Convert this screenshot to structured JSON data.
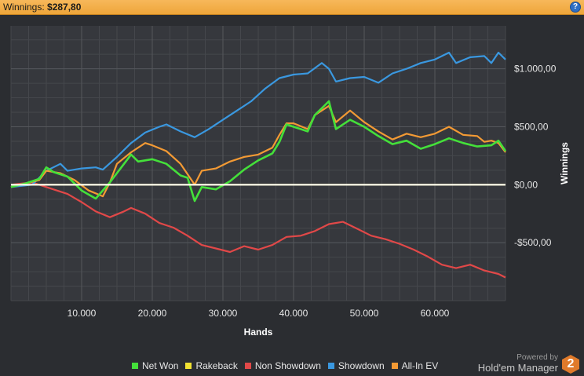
{
  "header": {
    "label": "Winnings:",
    "value": "$287,80",
    "help_glyph": "?"
  },
  "chart_data": {
    "type": "line",
    "xlabel": "Hands",
    "ylabel": "Winnings",
    "xlim": [
      0,
      70000
    ],
    "ylim": [
      -1000,
      1370
    ],
    "x_ticks": [
      10000,
      20000,
      30000,
      40000,
      50000,
      60000
    ],
    "x_tick_labels": [
      "10.000",
      "20.000",
      "30.000",
      "40.000",
      "50.000",
      "60.000"
    ],
    "y_ticks": [
      -500,
      0,
      500,
      1000
    ],
    "y_tick_labels": [
      "-$500,00",
      "$0,00",
      "$500,00",
      "$1.000,00"
    ],
    "grid": true,
    "legend_position": "bottom",
    "series": [
      {
        "name": "Net Won",
        "color": "#44e03a",
        "points": [
          [
            0,
            -20
          ],
          [
            2000,
            10
          ],
          [
            4000,
            50
          ],
          [
            5000,
            150
          ],
          [
            6000,
            110
          ],
          [
            8000,
            70
          ],
          [
            10000,
            -50
          ],
          [
            12000,
            -120
          ],
          [
            14000,
            20
          ],
          [
            16000,
            180
          ],
          [
            17000,
            260
          ],
          [
            18000,
            200
          ],
          [
            20000,
            220
          ],
          [
            22000,
            180
          ],
          [
            24000,
            80
          ],
          [
            25000,
            60
          ],
          [
            26000,
            -140
          ],
          [
            27000,
            -20
          ],
          [
            29000,
            -40
          ],
          [
            31000,
            30
          ],
          [
            33000,
            130
          ],
          [
            35000,
            210
          ],
          [
            37000,
            270
          ],
          [
            38000,
            370
          ],
          [
            39000,
            520
          ],
          [
            40000,
            500
          ],
          [
            42000,
            460
          ],
          [
            43000,
            600
          ],
          [
            45000,
            720
          ],
          [
            46000,
            480
          ],
          [
            48000,
            560
          ],
          [
            50000,
            500
          ],
          [
            52000,
            420
          ],
          [
            54000,
            350
          ],
          [
            56000,
            380
          ],
          [
            58000,
            310
          ],
          [
            60000,
            350
          ],
          [
            62000,
            400
          ],
          [
            64000,
            360
          ],
          [
            66000,
            330
          ],
          [
            68000,
            340
          ],
          [
            69000,
            380
          ],
          [
            70000,
            290
          ]
        ]
      },
      {
        "name": "Rakeback",
        "color": "#f2e232",
        "points": [
          [
            0,
            0
          ],
          [
            70000,
            0
          ]
        ]
      },
      {
        "name": "Non Showdown",
        "color": "#e14848",
        "points": [
          [
            0,
            0
          ],
          [
            3000,
            20
          ],
          [
            5000,
            -20
          ],
          [
            8000,
            -80
          ],
          [
            10000,
            -150
          ],
          [
            12000,
            -230
          ],
          [
            14000,
            -280
          ],
          [
            16000,
            -230
          ],
          [
            17000,
            -200
          ],
          [
            19000,
            -250
          ],
          [
            21000,
            -330
          ],
          [
            23000,
            -370
          ],
          [
            25000,
            -440
          ],
          [
            27000,
            -520
          ],
          [
            29000,
            -550
          ],
          [
            31000,
            -580
          ],
          [
            33000,
            -530
          ],
          [
            35000,
            -560
          ],
          [
            37000,
            -520
          ],
          [
            39000,
            -450
          ],
          [
            41000,
            -440
          ],
          [
            43000,
            -400
          ],
          [
            45000,
            -340
          ],
          [
            47000,
            -320
          ],
          [
            49000,
            -380
          ],
          [
            51000,
            -440
          ],
          [
            53000,
            -470
          ],
          [
            55000,
            -510
          ],
          [
            57000,
            -560
          ],
          [
            59000,
            -620
          ],
          [
            61000,
            -690
          ],
          [
            63000,
            -720
          ],
          [
            65000,
            -690
          ],
          [
            67000,
            -740
          ],
          [
            69000,
            -770
          ],
          [
            70000,
            -800
          ]
        ]
      },
      {
        "name": "Showdown",
        "color": "#3a98e0",
        "points": [
          [
            0,
            -20
          ],
          [
            3000,
            0
          ],
          [
            5000,
            120
          ],
          [
            7000,
            180
          ],
          [
            8000,
            120
          ],
          [
            10000,
            140
          ],
          [
            12000,
            150
          ],
          [
            13000,
            130
          ],
          [
            15000,
            240
          ],
          [
            17000,
            360
          ],
          [
            19000,
            450
          ],
          [
            21000,
            500
          ],
          [
            22000,
            520
          ],
          [
            24000,
            460
          ],
          [
            26000,
            410
          ],
          [
            28000,
            480
          ],
          [
            30000,
            560
          ],
          [
            32000,
            640
          ],
          [
            34000,
            720
          ],
          [
            36000,
            830
          ],
          [
            38000,
            920
          ],
          [
            40000,
            950
          ],
          [
            42000,
            960
          ],
          [
            44000,
            1050
          ],
          [
            45000,
            1000
          ],
          [
            46000,
            890
          ],
          [
            48000,
            920
          ],
          [
            50000,
            930
          ],
          [
            52000,
            880
          ],
          [
            54000,
            960
          ],
          [
            56000,
            1000
          ],
          [
            58000,
            1050
          ],
          [
            60000,
            1080
          ],
          [
            62000,
            1140
          ],
          [
            63000,
            1050
          ],
          [
            65000,
            1100
          ],
          [
            67000,
            1110
          ],
          [
            68000,
            1050
          ],
          [
            69000,
            1140
          ],
          [
            70000,
            1080
          ]
        ]
      },
      {
        "name": "All-In EV",
        "color": "#f39a34",
        "points": [
          [
            0,
            -20
          ],
          [
            2000,
            10
          ],
          [
            4000,
            40
          ],
          [
            5000,
            120
          ],
          [
            7000,
            100
          ],
          [
            9000,
            40
          ],
          [
            11000,
            -50
          ],
          [
            13000,
            -100
          ],
          [
            14000,
            20
          ],
          [
            15000,
            180
          ],
          [
            17000,
            280
          ],
          [
            19000,
            360
          ],
          [
            20000,
            340
          ],
          [
            22000,
            290
          ],
          [
            24000,
            180
          ],
          [
            25000,
            90
          ],
          [
            26000,
            0
          ],
          [
            27000,
            120
          ],
          [
            29000,
            140
          ],
          [
            31000,
            200
          ],
          [
            33000,
            240
          ],
          [
            35000,
            260
          ],
          [
            37000,
            320
          ],
          [
            38000,
            430
          ],
          [
            39000,
            530
          ],
          [
            40000,
            530
          ],
          [
            42000,
            480
          ],
          [
            43000,
            600
          ],
          [
            45000,
            680
          ],
          [
            46000,
            540
          ],
          [
            48000,
            640
          ],
          [
            50000,
            540
          ],
          [
            52000,
            460
          ],
          [
            54000,
            390
          ],
          [
            56000,
            440
          ],
          [
            58000,
            410
          ],
          [
            60000,
            440
          ],
          [
            62000,
            500
          ],
          [
            64000,
            430
          ],
          [
            66000,
            420
          ],
          [
            67000,
            370
          ],
          [
            68000,
            380
          ],
          [
            69000,
            360
          ],
          [
            70000,
            280
          ]
        ]
      }
    ]
  },
  "legend": {
    "items": [
      {
        "label": "Net Won",
        "color": "#44e03a"
      },
      {
        "label": "Rakeback",
        "color": "#f2e232"
      },
      {
        "label": "Non Showdown",
        "color": "#e14848"
      },
      {
        "label": "Showdown",
        "color": "#3a98e0"
      },
      {
        "label": "All-In EV",
        "color": "#f39a34"
      }
    ]
  },
  "branding": {
    "powered": "Powered by",
    "name": "Hold'em Manager",
    "logo_glyph": "2"
  }
}
